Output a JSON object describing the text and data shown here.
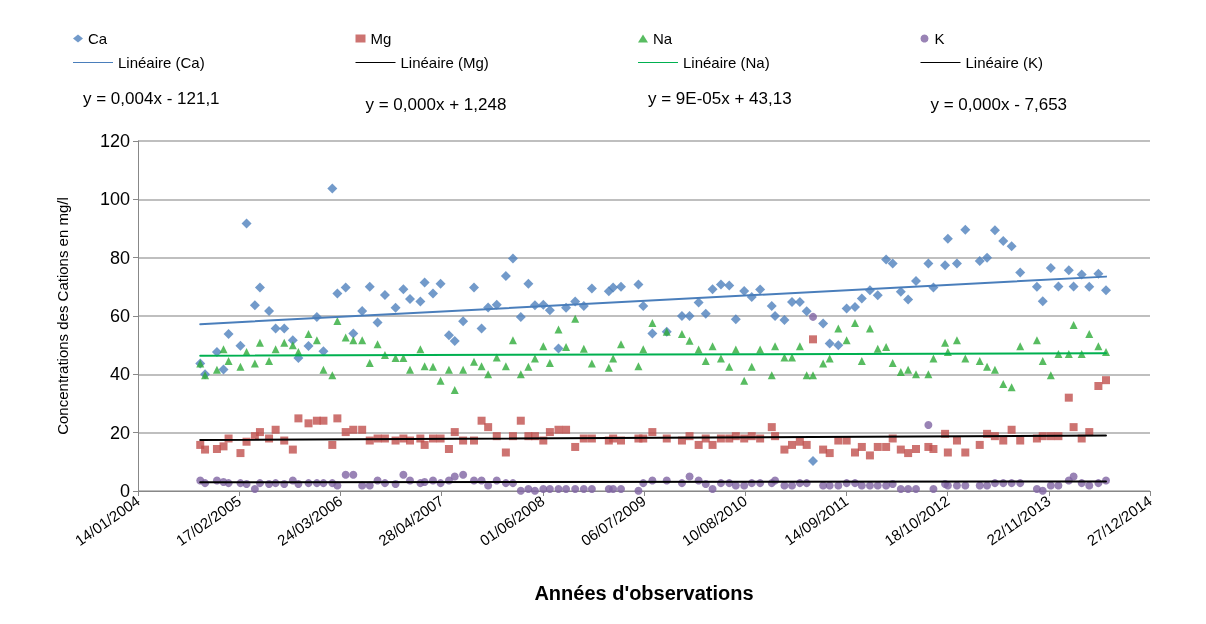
{
  "chart_data": {
    "type": "scatter",
    "xlabel": "Années d'observations",
    "ylabel": "Concentrations des Cations en mg/l",
    "x": [
      "2004-09-16",
      "2004-10-05",
      "2004-11-21",
      "2004-12-17",
      "2005-01-06",
      "2005-02-22",
      "2005-03-18",
      "2005-04-20",
      "2005-05-10",
      "2005-06-15",
      "2005-07-11",
      "2005-08-14",
      "2005-09-17",
      "2005-10-09",
      "2005-11-18",
      "2005-12-21",
      "2006-01-16",
      "2006-02-20",
      "2006-03-12",
      "2006-04-14",
      "2006-05-14",
      "2006-06-18",
      "2006-07-18",
      "2006-08-18",
      "2006-09-16",
      "2006-10-28",
      "2006-11-28",
      "2006-12-24",
      "2007-02-03",
      "2007-02-20",
      "2007-03-25",
      "2007-04-24",
      "2007-05-27",
      "2007-06-19",
      "2007-07-22",
      "2007-09-03",
      "2007-10-03",
      "2007-10-29",
      "2007-12-02",
      "2008-01-07",
      "2008-02-04",
      "2008-03-06",
      "2008-04-05",
      "2008-05-01",
      "2008-06-03",
      "2008-06-29",
      "2008-08-02",
      "2008-09-01",
      "2008-10-07",
      "2008-11-10",
      "2008-12-12",
      "2009-02-17",
      "2009-03-06",
      "2009-04-06",
      "2009-06-14",
      "2009-07-03",
      "2009-08-08",
      "2009-10-04",
      "2009-12-03",
      "2010-01-02",
      "2010-02-07",
      "2010-03-07",
      "2010-04-03",
      "2010-05-06",
      "2010-06-08",
      "2010-07-04",
      "2010-08-06",
      "2010-09-05",
      "2010-10-08",
      "2010-11-23",
      "2010-12-06",
      "2011-01-12",
      "2011-02-11",
      "2011-03-14",
      "2011-04-10",
      "2011-05-05",
      "2011-06-14",
      "2011-07-10",
      "2011-08-13",
      "2011-09-15",
      "2011-10-18",
      "2011-11-14",
      "2011-12-16",
      "2012-01-16",
      "2012-02-18",
      "2012-03-15",
      "2012-04-16",
      "2012-05-15",
      "2012-06-15",
      "2012-08-03",
      "2012-08-23",
      "2012-10-08",
      "2012-10-19",
      "2012-11-24",
      "2012-12-27",
      "2013-02-22",
      "2013-03-23",
      "2013-04-23",
      "2013-05-26",
      "2013-06-28",
      "2013-08-01",
      "2013-10-06",
      "2013-10-29",
      "2013-11-30",
      "2013-12-30",
      "2014-02-09",
      "2014-02-28",
      "2014-04-01",
      "2014-05-01",
      "2014-06-06",
      "2014-07-06"
    ],
    "series": [
      {
        "name": "Ca",
        "marker": "diamond",
        "color": "#4f81bd",
        "values": [
          43.7,
          40,
          47.7,
          41.7,
          53.8,
          49.8,
          91.7,
          63.7,
          69.8,
          61.7,
          55.7,
          55.7,
          51.7,
          45.6,
          49.7,
          59.7,
          47.9,
          103.7,
          67.7,
          69.8,
          54,
          61.7,
          70,
          57.8,
          67.2,
          62.8,
          69.2,
          65.8,
          65,
          71.5,
          67.7,
          71.1,
          53.4,
          51.4,
          58.2,
          69.8,
          55.7,
          62.9,
          63.9,
          73.7,
          79.7,
          59.7,
          71.1,
          63.7,
          63.9,
          62,
          48.9,
          62.8,
          65,
          63.4,
          69.4,
          68.5,
          69.8,
          70,
          70.8,
          63.4,
          54,
          54.6,
          60,
          60,
          64.6,
          60.8,
          69.2,
          70.8,
          70.5,
          58.9,
          68.6,
          66.5,
          69.1,
          63.4,
          60,
          58.6,
          64.8,
          64.8,
          61.6,
          10.3,
          57.4,
          50.6,
          50,
          62.6,
          63.1,
          66,
          68.8,
          67.1,
          79.4,
          78,
          68.3,
          65.7,
          72,
          78,
          69.8,
          77.4,
          86.5,
          78,
          89.6,
          78.9,
          80,
          89.4,
          85.7,
          83.9,
          74.9,
          70,
          65.1,
          76.5,
          70.1,
          75.7,
          70.1,
          74.2,
          70,
          74.5,
          68.8
        ]
      },
      {
        "name": "Mg",
        "marker": "square",
        "color": "#c0504d",
        "values": [
          15.8,
          14.2,
          14.4,
          15.3,
          18,
          13,
          16.9,
          18.8,
          20.2,
          18,
          21,
          17.3,
          14.2,
          24.9,
          23.2,
          24.1,
          24.1,
          15.8,
          24.9,
          20.2,
          21,
          21,
          17.3,
          18,
          18,
          17.3,
          18,
          17.3,
          18,
          15.8,
          18,
          18,
          14.4,
          20.2,
          17.3,
          17.3,
          24.1,
          21.9,
          18.8,
          13.2,
          18.8,
          24.1,
          18.8,
          18.8,
          17.3,
          20.2,
          21,
          21,
          15.1,
          18,
          18,
          17.3,
          18,
          17.3,
          18,
          18,
          20.2,
          18,
          17.3,
          18.8,
          15.8,
          18,
          15.8,
          18,
          18,
          18.8,
          18,
          18.8,
          18,
          21.9,
          18.8,
          14.2,
          15.8,
          16.9,
          15.8,
          52,
          14.2,
          13,
          17.3,
          17.3,
          13.2,
          15.1,
          12.2,
          15.1,
          15.1,
          18,
          14.2,
          13,
          14.4,
          15.1,
          14.4,
          19.6,
          13.2,
          17.3,
          13.2,
          15.8,
          19.6,
          18.8,
          17.3,
          21,
          17.3,
          18,
          18.8,
          18.8,
          18.8,
          32,
          21.9,
          18,
          20.2,
          36,
          38
        ]
      },
      {
        "name": "Na",
        "marker": "triangle",
        "color": "#2eab3a",
        "values": [
          43.7,
          39.7,
          41.6,
          48.6,
          44.6,
          42.6,
          47.7,
          43.7,
          50.8,
          44.6,
          48.6,
          50.8,
          50,
          47.7,
          53.8,
          51.7,
          41.6,
          39.7,
          58.3,
          52.6,
          51.7,
          51.7,
          43.9,
          50.3,
          46.6,
          45.6,
          45.6,
          41.6,
          48.6,
          42.8,
          42.6,
          37.8,
          41.6,
          34.6,
          41.6,
          44.3,
          42.8,
          40,
          45.8,
          42.8,
          51.7,
          40,
          42.6,
          45.4,
          49.6,
          43.9,
          55.4,
          49.4,
          59.1,
          48.8,
          43.7,
          42.3,
          45.4,
          50.3,
          42.8,
          48.6,
          57.6,
          54.6,
          53.8,
          51.5,
          48.5,
          44.6,
          49.6,
          45.4,
          42.6,
          48.5,
          37.8,
          42.6,
          48.5,
          39.7,
          49.6,
          45.8,
          45.8,
          49.6,
          39.7,
          39.7,
          43.7,
          45.4,
          55.7,
          51.7,
          57.6,
          44.6,
          55.7,
          48.8,
          49.4,
          43.9,
          40.8,
          41.6,
          40,
          40,
          45.4,
          50.8,
          47.7,
          51.7,
          45.4,
          44.6,
          42.6,
          41.6,
          36.7,
          35.6,
          49.6,
          51.7,
          44.6,
          39.7,
          47,
          47,
          56.9,
          47,
          53.8,
          49.6,
          47.7
        ]
      },
      {
        "name": "K",
        "marker": "circle",
        "color": "#8064a2",
        "values": [
          3.6,
          2.7,
          3.6,
          3.1,
          2.7,
          2.7,
          2.4,
          0.7,
          2.7,
          2.4,
          2.7,
          2.4,
          3.6,
          2.4,
          2.7,
          2.7,
          2.7,
          2.7,
          1.9,
          5.6,
          5.6,
          1.9,
          1.9,
          3.6,
          2.7,
          2.4,
          5.6,
          3.6,
          2.7,
          3.1,
          3.6,
          2.7,
          3.6,
          5,
          5.6,
          3.6,
          3.6,
          1.9,
          3.6,
          2.7,
          2.7,
          0.1,
          0.7,
          0.1,
          0.7,
          0.7,
          0.7,
          0.7,
          0.7,
          0.7,
          0.7,
          0.7,
          0.7,
          0.7,
          0.1,
          2.7,
          3.6,
          3.6,
          2.7,
          5,
          3.6,
          2.4,
          0.7,
          2.7,
          2.7,
          1.9,
          1.9,
          2.7,
          2.7,
          2.7,
          3.6,
          1.9,
          1.9,
          2.7,
          2.7,
          59.7,
          1.9,
          1.9,
          1.9,
          2.7,
          2.7,
          1.9,
          1.9,
          1.9,
          1.9,
          2.4,
          0.7,
          0.7,
          0.7,
          22.6,
          0.7,
          2.4,
          1.9,
          1.9,
          1.9,
          1.9,
          1.9,
          2.7,
          2.7,
          2.7,
          2.7,
          0.7,
          0.1,
          1.9,
          1.9,
          3.6,
          5,
          2.7,
          1.9,
          2.7,
          3.6
        ]
      },
      {
        "name": "Linéaire (Ca)",
        "type": "line",
        "marker": "none",
        "line_style": "solid",
        "color": "#4a7ebb",
        "x": [
          "2004-09-16",
          "2014-07-06"
        ],
        "values": [
          57.2,
          73.5
        ]
      },
      {
        "name": "Linéaire (Mg)",
        "type": "line",
        "marker": "none",
        "line_style": "solid",
        "color": "#000000",
        "x": [
          "2004-09-16",
          "2014-07-06"
        ],
        "values": [
          17.5,
          19
        ]
      },
      {
        "name": "Linéaire (Na)",
        "type": "line",
        "marker": "none",
        "line_style": "solid",
        "color": "#00b050",
        "x": [
          "2004-09-16",
          "2014-07-06"
        ],
        "values": [
          46.4,
          47.2
        ]
      },
      {
        "name": "Linéaire (K)",
        "type": "line",
        "marker": "none",
        "line_style": "solid",
        "color": "#000000",
        "x": [
          "2004-09-16",
          "2014-07-06"
        ],
        "values": [
          3,
          3.3
        ]
      }
    ],
    "annotations": [
      "y = 0,004x - 121,1",
      "y = 0,000x + 1,248",
      "y = 9E-05x + 43,13",
      "y = 0,000x - 7,653"
    ],
    "xlim": [
      "2004-01-14",
      "2014-12-27"
    ],
    "xticks": [
      {
        "value": "2004-01-14",
        "label": "14/01/2004"
      },
      {
        "value": "2005-02-17",
        "label": "17/02/2005"
      },
      {
        "value": "2006-03-24",
        "label": "24/03/2006"
      },
      {
        "value": "2007-04-28",
        "label": "28/04/2007"
      },
      {
        "value": "2008-06-01",
        "label": "01/06/2008"
      },
      {
        "value": "2009-07-06",
        "label": "06/07/2009"
      },
      {
        "value": "2010-08-10",
        "label": "10/08/2010"
      },
      {
        "value": "2011-09-14",
        "label": "14/09/2011"
      },
      {
        "value": "2012-10-18",
        "label": "18/10/2012"
      },
      {
        "value": "2013-11-22",
        "label": "22/11/2013"
      },
      {
        "value": "2014-12-27",
        "label": "27/12/2014"
      }
    ],
    "ylim": [
      0,
      120
    ],
    "yticks": [
      0,
      20,
      40,
      60,
      80,
      100,
      120
    ],
    "grid": "y",
    "legend": "top"
  }
}
